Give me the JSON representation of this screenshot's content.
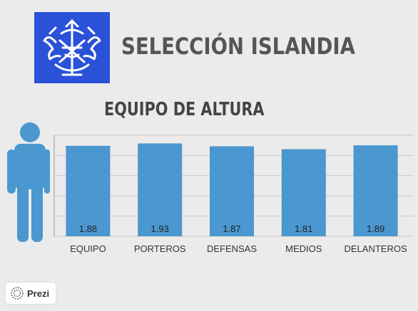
{
  "header": {
    "title": "SELECCIÓN ISLANDIA",
    "logo_icon": "iceland-crest-icon"
  },
  "colors": {
    "logo_bg": "#2a52d8",
    "bar": "#4b97cf",
    "person": "#4b97cf",
    "grid": "#c8c8c8",
    "background": "#ebebeb"
  },
  "badge": {
    "label": "Prezi",
    "icon": "prezi-icon"
  },
  "chart_data": {
    "type": "bar",
    "title": "EQUIPO DE ALTURA",
    "categories": [
      "EQUIPO",
      "PORTEROS",
      "DEFENSAS",
      "MEDIOS",
      "DELANTEROS"
    ],
    "values": [
      1.88,
      1.93,
      1.87,
      1.81,
      1.89
    ],
    "data_labels": [
      "1.88",
      "1.93",
      "1.87",
      "1.81",
      "1.89"
    ],
    "ylim": [
      0,
      2.1
    ],
    "grid": true,
    "legend": "none",
    "xlabel": "",
    "ylabel": ""
  }
}
